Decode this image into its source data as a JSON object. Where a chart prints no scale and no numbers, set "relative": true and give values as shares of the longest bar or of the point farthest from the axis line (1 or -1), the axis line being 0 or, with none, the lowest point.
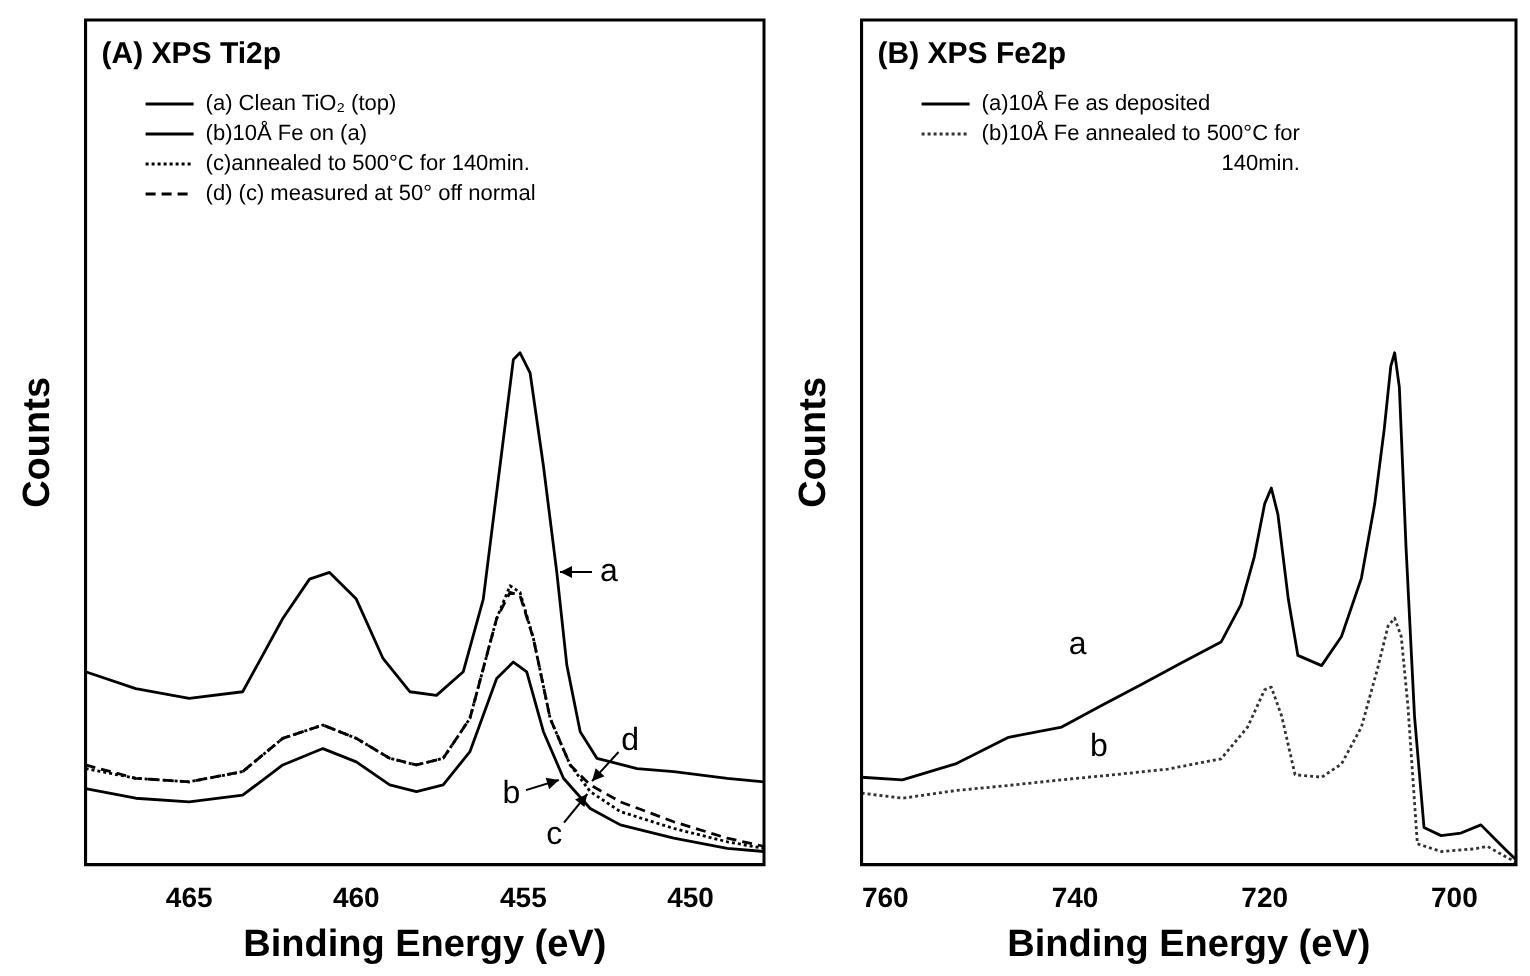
{
  "chart_data": [
    {
      "type": "line",
      "title": "(A) XPS Ti2p",
      "xlabel": "Binding Energy (eV)",
      "ylabel": "Counts",
      "relative": true,
      "tick_labels": "x",
      "legend": "top left",
      "xlim": [
        468.1,
        447.8
      ],
      "xticks": [
        465,
        460,
        455,
        450
      ],
      "series": [
        {
          "name": "(a) Clean TiO₂ (top)",
          "color": "#000000",
          "line_style": "solid",
          "x": [
            468.1,
            466.6,
            465,
            463.4,
            462.2,
            461.4,
            460.8,
            460.0,
            459.2,
            458.4,
            457.6,
            456.8,
            456.2,
            455.7,
            455.3,
            455.1,
            454.8,
            454.4,
            454.0,
            453.7,
            453.3,
            452.8,
            451.6,
            450.5,
            448.9,
            447.8
          ],
          "values": [
            0.377,
            0.344,
            0.325,
            0.338,
            0.481,
            0.558,
            0.571,
            0.519,
            0.403,
            0.338,
            0.331,
            0.377,
            0.519,
            0.779,
            0.987,
            1,
            0.961,
            0.779,
            0.571,
            0.39,
            0.26,
            0.208,
            0.188,
            0.182,
            0.169,
            0.162
          ]
        },
        {
          "name": "(b)10Å Fe on (a)",
          "color": "#000000",
          "line_style": "solid",
          "x": [
            468.1,
            466.6,
            465,
            463.4,
            462.2,
            461.0,
            460.0,
            459.0,
            458.2,
            457.4,
            456.6,
            455.8,
            455.3,
            454.9,
            454.4,
            453.8,
            453.0,
            452.1,
            450.5,
            448.9,
            447.8
          ],
          "values": [
            0.149,
            0.13,
            0.123,
            0.136,
            0.195,
            0.227,
            0.201,
            0.156,
            0.143,
            0.156,
            0.221,
            0.364,
            0.396,
            0.377,
            0.26,
            0.169,
            0.11,
            0.078,
            0.052,
            0.032,
            0.026
          ]
        },
        {
          "name": "(c)annealed to 500°C for 140min.",
          "color": "#000000",
          "line_style": "dotted",
          "x": [
            468.1,
            466.6,
            465,
            463.4,
            462.2,
            461.0,
            460.0,
            459.0,
            458.2,
            457.4,
            456.6,
            455.8,
            455.4,
            455.1,
            454.7,
            454.2,
            453.6,
            453.0,
            452.1,
            450.5,
            448.9,
            447.8
          ],
          "values": [
            0.188,
            0.169,
            0.162,
            0.182,
            0.247,
            0.273,
            0.247,
            0.208,
            0.195,
            0.208,
            0.286,
            0.481,
            0.545,
            0.532,
            0.442,
            0.286,
            0.195,
            0.143,
            0.104,
            0.071,
            0.045,
            0.032
          ]
        },
        {
          "name": "(d) (c) measured at 50° off normal",
          "color": "#000000",
          "line_style": "dashed",
          "x": [
            468.1,
            466.6,
            465,
            463.4,
            462.2,
            461.0,
            460.0,
            459.0,
            458.2,
            457.4,
            456.6,
            455.8,
            455.4,
            455.1,
            454.7,
            454.2,
            453.6,
            453.0,
            452.1,
            450.5,
            448.9,
            447.8
          ],
          "values": [
            0.195,
            0.169,
            0.162,
            0.182,
            0.247,
            0.273,
            0.247,
            0.208,
            0.195,
            0.208,
            0.286,
            0.481,
            0.532,
            0.526,
            0.442,
            0.286,
            0.195,
            0.156,
            0.123,
            0.084,
            0.052,
            0.036
          ]
        }
      ],
      "annotations": [
        {
          "text": "a",
          "x": 454.0,
          "y": 0.571
        },
        {
          "text": "b",
          "x": 453.8,
          "y": 0.169
        },
        {
          "text": "c",
          "x": 453.0,
          "y": 0.143
        },
        {
          "text": "d",
          "x": 453.0,
          "y": 0.156
        }
      ]
    },
    {
      "type": "line",
      "title": "(B) XPS Fe2p",
      "xlabel": "Binding Energy (eV)",
      "ylabel": "Counts",
      "relative": true,
      "tick_labels": "x",
      "legend": "top left",
      "xlim": [
        762.5,
        693.5
      ],
      "xticks": [
        760,
        740,
        720,
        700
      ],
      "series": [
        {
          "name": "(a)10Å Fe as deposited",
          "color": "#000000",
          "line_style": "solid",
          "x": [
            762.5,
            758.2,
            752.6,
            747.0,
            741.4,
            737.2,
            733.0,
            728.8,
            724.6,
            722.5,
            721.1,
            720.0,
            719.3,
            718.6,
            717.5,
            716.5,
            714.0,
            711.9,
            709.8,
            708.4,
            707.4,
            706.7,
            706.3,
            705.8,
            705.1,
            704.2,
            703.2,
            701.4,
            699.3,
            697.2,
            695.8,
            694.4,
            693.5
          ],
          "values": [
            0.171,
            0.166,
            0.197,
            0.249,
            0.269,
            0.311,
            0.352,
            0.394,
            0.435,
            0.508,
            0.601,
            0.705,
            0.736,
            0.684,
            0.518,
            0.409,
            0.389,
            0.446,
            0.56,
            0.705,
            0.85,
            0.974,
            1,
            0.933,
            0.622,
            0.29,
            0.073,
            0.057,
            0.062,
            0.078,
            0.052,
            0.026,
            0.01
          ]
        },
        {
          "name": "(b)10Å Fe annealed to 500°C for 140min.",
          "color": "#333333",
          "line_style": "dotted",
          "x": [
            762.5,
            758.2,
            752.6,
            747.0,
            741.4,
            735.8,
            730.2,
            724.6,
            721.8,
            720.0,
            719.3,
            718.2,
            716.8,
            714.0,
            711.9,
            709.8,
            708.1,
            707.0,
            706.3,
            705.6,
            704.9,
            703.9,
            701.4,
            697.9,
            696.5,
            695.1,
            693.5
          ],
          "values": [
            0.14,
            0.13,
            0.145,
            0.155,
            0.166,
            0.176,
            0.187,
            0.207,
            0.269,
            0.342,
            0.347,
            0.29,
            0.176,
            0.171,
            0.197,
            0.269,
            0.383,
            0.466,
            0.482,
            0.446,
            0.311,
            0.041,
            0.026,
            0.031,
            0.036,
            0.021,
            0.005
          ]
        }
      ],
      "annotations": [
        {
          "text": "a",
          "x": 737.2,
          "y": 0.311
        },
        {
          "text": "b",
          "x": 735.8,
          "y": 0.176
        }
      ]
    }
  ]
}
